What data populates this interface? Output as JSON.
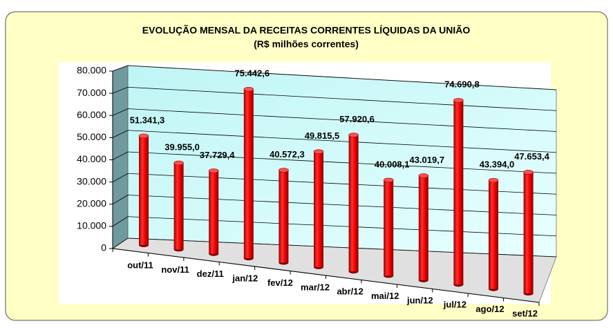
{
  "chart_data": {
    "type": "bar3d",
    "title": "EVOLUÇÃO MENSAL DA RECEITAS CORRENTES LÍQUIDAS DA UNIÃO",
    "subtitle": "(R$ milhões correntes)",
    "categories": [
      "out/11",
      "nov/11",
      "dez/11",
      "jan/12",
      "fev/12",
      "mar/12",
      "abr/12",
      "mai/12",
      "jun/12",
      "jul/12",
      "ago/12",
      "set/12"
    ],
    "values": [
      51341.3,
      39955.0,
      37729.4,
      75442.6,
      40572.3,
      49815.5,
      57920.6,
      40008.1,
      43019.7,
      74690.8,
      43394.0,
      47653.4
    ],
    "value_labels": [
      "51.341,3",
      "39.955,0",
      "37.729,4",
      "75.442,6",
      "40.572,3",
      "49.815,5",
      "57.920,6",
      "40.008,1",
      "43.019,7",
      "74.690,8",
      "43.394,0",
      "47.653,4"
    ],
    "color": "#ff0000",
    "ylim": [
      0,
      80000
    ],
    "yticks": [
      0,
      {
        "value": 10000,
        "label": "10.000"
      },
      {
        "value": 20000,
        "label": "20.000"
      },
      {
        "value": 30000,
        "label": "30.000"
      },
      {
        "value": 40000,
        "label": "40.000"
      },
      {
        "value": 50000,
        "label": "50.000"
      },
      {
        "value": 60000,
        "label": "60.000"
      },
      {
        "value": 70000,
        "label": "70.000"
      },
      {
        "value": 80000,
        "label": "80.000"
      }
    ],
    "grid": true
  }
}
